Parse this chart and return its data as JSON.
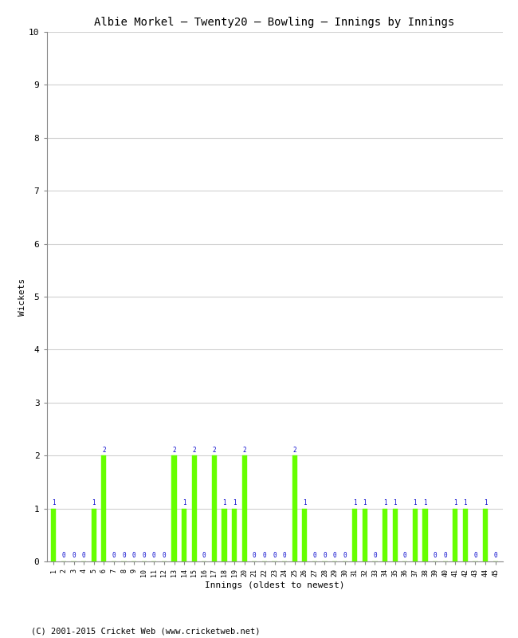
{
  "title": "Albie Morkel – Twenty20 – Bowling – Innings by Innings",
  "xlabel": "Innings (oldest to newest)",
  "ylabel": "Wickets",
  "ylim": [
    0,
    10
  ],
  "yticks": [
    0,
    1,
    2,
    3,
    4,
    5,
    6,
    7,
    8,
    9,
    10
  ],
  "bar_color": "#66ff00",
  "bar_edge_color": "#66ff00",
  "background_color": "#ffffff",
  "grid_color": "#d0d0d0",
  "label_color": "#0000cc",
  "footnote": "(C) 2001-2015 Cricket Web (www.cricketweb.net)",
  "innings": [
    1,
    2,
    3,
    4,
    5,
    6,
    7,
    8,
    9,
    10,
    11,
    12,
    13,
    14,
    15,
    16,
    17,
    18,
    19,
    20,
    21,
    22,
    23,
    24,
    25,
    26,
    27,
    28,
    29,
    30,
    31,
    32,
    33,
    34,
    35,
    36,
    37,
    38,
    39,
    40,
    41,
    42,
    43,
    44,
    45
  ],
  "wickets": [
    1,
    0,
    0,
    0,
    1,
    2,
    0,
    0,
    0,
    0,
    0,
    0,
    2,
    1,
    2,
    0,
    2,
    1,
    1,
    2,
    0,
    0,
    0,
    0,
    2,
    1,
    0,
    0,
    0,
    0,
    1,
    1,
    0,
    1,
    1,
    0,
    1,
    1,
    0,
    0,
    1,
    1,
    0,
    1,
    0
  ]
}
